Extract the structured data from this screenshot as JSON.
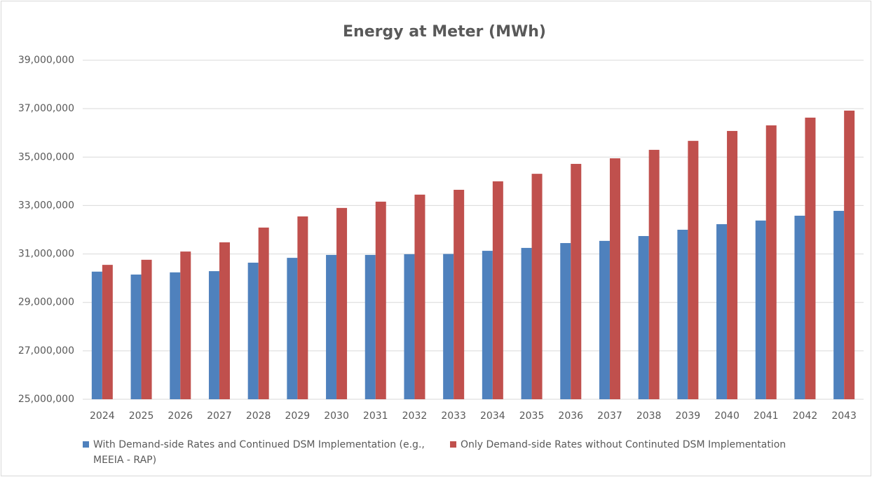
{
  "chart_data": {
    "type": "bar",
    "title": "Energy at Meter (MWh)",
    "categories": [
      "2024",
      "2025",
      "2026",
      "2027",
      "2028",
      "2029",
      "2030",
      "2031",
      "2032",
      "2033",
      "2034",
      "2035",
      "2036",
      "2037",
      "2038",
      "2039",
      "2040",
      "2041",
      "2042",
      "2043"
    ],
    "series": [
      {
        "name": "With Demand-side Rates and Continued DSM Implementation (e.g., MEEIA - RAP)",
        "color": "#4f81bd",
        "values": [
          30270000,
          30150000,
          30240000,
          30290000,
          30640000,
          30840000,
          30960000,
          30960000,
          30990000,
          31000000,
          31130000,
          31250000,
          31450000,
          31540000,
          31740000,
          32000000,
          32230000,
          32380000,
          32580000,
          32780000
        ]
      },
      {
        "name": "Only Demand-side Rates without Continuted DSM Implementation",
        "color": "#c0504d",
        "values": [
          30550000,
          30760000,
          31100000,
          31480000,
          32090000,
          32550000,
          32900000,
          33160000,
          33450000,
          33650000,
          34000000,
          34310000,
          34720000,
          34950000,
          35300000,
          35670000,
          36080000,
          36310000,
          36630000,
          36920000
        ]
      }
    ],
    "ylim": [
      25000000,
      39000000
    ],
    "yticks": [
      {
        "value": 25000000,
        "label": "25,000,000"
      },
      {
        "value": 27000000,
        "label": "27,000,000"
      },
      {
        "value": 29000000,
        "label": "29,000,000"
      },
      {
        "value": 31000000,
        "label": "31,000,000"
      },
      {
        "value": 33000000,
        "label": "33,000,000"
      },
      {
        "value": 35000000,
        "label": "35,000,000"
      },
      {
        "value": 37000000,
        "label": "37,000,000"
      },
      {
        "value": 39000000,
        "label": "39,000,000"
      }
    ],
    "grid": true
  }
}
